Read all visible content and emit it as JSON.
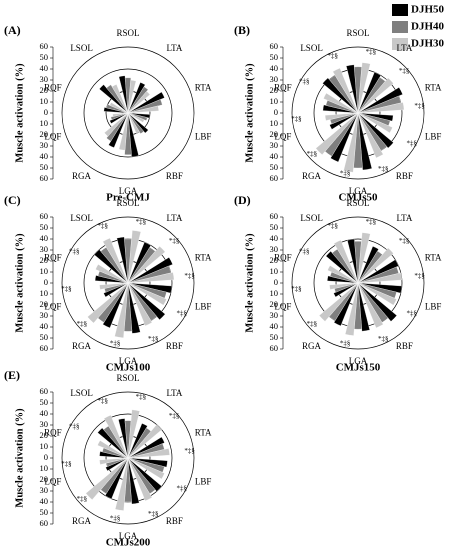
{
  "legend": {
    "position": "top-right",
    "items": [
      {
        "name": "DJH50",
        "color": "#000000"
      },
      {
        "name": "DJH40",
        "color": "#7f7f7f"
      },
      {
        "name": "DJH30",
        "color": "#c8c8c8"
      }
    ]
  },
  "chart_data": [
    {
      "type": "polar_bar",
      "title": "(A)",
      "subtitle": "Pre-CMJ",
      "ylabel": "Muscle activation (%)",
      "categories": [
        "RSOL",
        "LTA",
        "RTA",
        "LBF",
        "RBF",
        "LGA",
        "RGA",
        "LQF",
        "RQF",
        "LSOL"
      ],
      "series": [
        {
          "values": [
            34,
            30,
            36,
            20,
            24,
            40,
            34,
            18,
            22,
            34
          ]
        },
        {
          "values": [
            32,
            28,
            32,
            18,
            22,
            38,
            30,
            16,
            20,
            30
          ]
        },
        {
          "values": [
            30,
            26,
            28,
            16,
            20,
            34,
            28,
            14,
            18,
            28
          ]
        }
      ],
      "annotations": [
        null,
        null,
        null,
        null,
        null,
        null,
        null,
        null,
        null,
        null
      ],
      "rlim": [
        0,
        60
      ],
      "rticks": [
        0,
        10,
        20,
        30,
        40,
        50,
        60
      ],
      "rings": [
        20,
        40,
        60
      ]
    },
    {
      "type": "polar_bar",
      "title": "(B)",
      "subtitle": "CMJs50",
      "ylabel": "Muscle activation (%)",
      "categories": [
        "RSOL",
        "LTA",
        "RTA",
        "LBF",
        "RBF",
        "LGA",
        "RGA",
        "LQF",
        "RQF",
        "LSOL"
      ],
      "series": [
        {
          "values": [
            44,
            40,
            44,
            32,
            42,
            52,
            48,
            28,
            32,
            42
          ]
        },
        {
          "values": [
            42,
            38,
            40,
            30,
            40,
            50,
            46,
            26,
            30,
            40
          ]
        },
        {
          "values": [
            46,
            42,
            42,
            34,
            44,
            54,
            50,
            30,
            34,
            44
          ]
        }
      ],
      "annotations": [
        "*‡§",
        "*‡§",
        "*‡§",
        "*‡§",
        "*‡§",
        "*‡§",
        "*‡§",
        "*‡§",
        "*‡§",
        "*‡§"
      ],
      "rlim": [
        0,
        60
      ],
      "rticks": [
        0,
        10,
        20,
        30,
        40,
        50,
        60
      ],
      "rings": [
        20,
        40,
        60
      ]
    },
    {
      "type": "polar_bar",
      "title": "(C)",
      "subtitle": "CMJs100",
      "ylabel": "Muscle activation (%)",
      "categories": [
        "RSOL",
        "LTA",
        "RTA",
        "LBF",
        "RBF",
        "LGA",
        "RGA",
        "LQF",
        "RQF",
        "LSOL"
      ],
      "series": [
        {
          "values": [
            42,
            40,
            44,
            40,
            44,
            46,
            44,
            24,
            30,
            40
          ]
        },
        {
          "values": [
            40,
            38,
            40,
            36,
            40,
            44,
            42,
            22,
            28,
            38
          ]
        },
        {
          "values": [
            48,
            44,
            42,
            38,
            42,
            50,
            48,
            26,
            32,
            44
          ]
        }
      ],
      "annotations": [
        "*‡§",
        "*‡§",
        "*‡§",
        "*‡§",
        "*‡§",
        "*‡§",
        "*‡§",
        "*‡§",
        "*‡§",
        "*‡§"
      ],
      "rlim": [
        0,
        60
      ],
      "rticks": [
        0,
        10,
        20,
        30,
        40,
        50,
        60
      ],
      "rings": [
        20,
        40,
        60
      ]
    },
    {
      "type": "polar_bar",
      "title": "(D)",
      "subtitle": "CMJs150",
      "ylabel": "Muscle activation (%)",
      "categories": [
        "RSOL",
        "LTA",
        "RTA",
        "LBF",
        "RBF",
        "LGA",
        "RGA",
        "LQF",
        "RQF",
        "LSOL"
      ],
      "series": [
        {
          "values": [
            40,
            36,
            40,
            40,
            46,
            44,
            42,
            24,
            28,
            38
          ]
        },
        {
          "values": [
            38,
            34,
            38,
            36,
            42,
            42,
            40,
            22,
            26,
            36
          ]
        },
        {
          "values": [
            46,
            42,
            40,
            38,
            44,
            48,
            46,
            26,
            30,
            42
          ]
        }
      ],
      "annotations": [
        "*‡§",
        "*‡§",
        "*‡§",
        "*‡§",
        "*‡§",
        "*‡§",
        "*‡§",
        "*‡§",
        "*‡§",
        "*‡§"
      ],
      "rlim": [
        0,
        60
      ],
      "rticks": [
        0,
        10,
        20,
        30,
        40,
        50,
        60
      ],
      "rings": [
        20,
        40,
        60
      ]
    },
    {
      "type": "polar_bar",
      "title": "(E)",
      "subtitle": "CMJs200",
      "ylabel": "Muscle activation (%)",
      "categories": [
        "RSOL",
        "LTA",
        "RTA",
        "LBF",
        "RBF",
        "LGA",
        "RGA",
        "LQF",
        "RQF",
        "LSOL"
      ],
      "series": [
        {
          "values": [
            36,
            34,
            36,
            36,
            40,
            42,
            40,
            22,
            26,
            36
          ]
        },
        {
          "values": [
            34,
            32,
            34,
            34,
            38,
            40,
            38,
            20,
            24,
            34
          ]
        },
        {
          "values": [
            44,
            40,
            38,
            36,
            42,
            48,
            50,
            26,
            30,
            42
          ]
        }
      ],
      "annotations": [
        "*‡§",
        "*‡§",
        "*‡§",
        "*‡§",
        "*‡§",
        "*‡§",
        "*‡§",
        "*‡§",
        "*‡§",
        "*‡§"
      ],
      "rlim": [
        0,
        60
      ],
      "rticks": [
        0,
        10,
        20,
        30,
        40,
        50,
        60
      ],
      "rings": [
        20,
        40,
        60
      ]
    }
  ]
}
